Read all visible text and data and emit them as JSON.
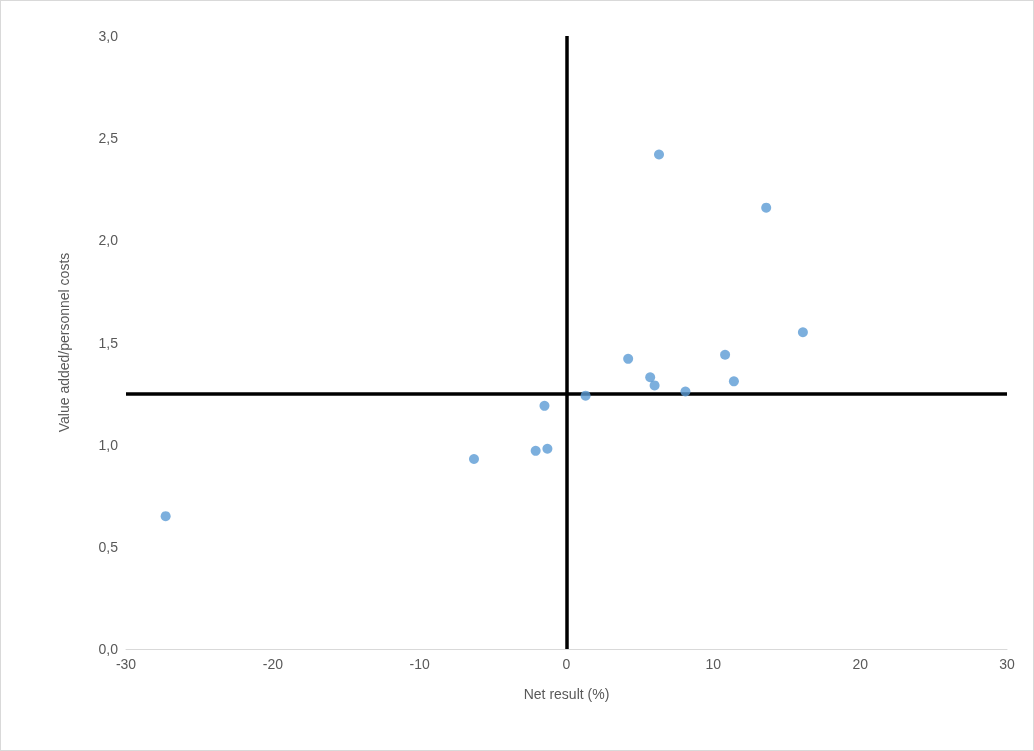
{
  "chart_data": {
    "type": "scatter",
    "xlabel": "Net result (%)",
    "ylabel": "Value added/personnel costs",
    "x": [
      -27.3,
      -6.3,
      -2.1,
      -1.3,
      -1.5,
      1.3,
      4.2,
      5.7,
      6.0,
      6.3,
      8.1,
      10.8,
      11.4,
      13.6,
      16.1
    ],
    "series": [
      {
        "color": "#5b9bd5",
        "values": [
          0.65,
          0.93,
          0.97,
          0.98,
          1.19,
          1.24,
          1.42,
          1.33,
          1.29,
          2.42,
          1.26,
          1.44,
          1.31,
          2.16,
          1.55
        ]
      }
    ],
    "xlim": [
      -30,
      30
    ],
    "xticks": [
      -30,
      -20,
      -10,
      0,
      10,
      20,
      30
    ],
    "ylim": [
      0,
      3
    ],
    "yticks": [
      {
        "value": 0,
        "label": "0,0"
      },
      {
        "value": 0.5,
        "label": "0,5"
      },
      {
        "value": 1,
        "label": "1,0"
      },
      {
        "value": 1.5,
        "label": "1,5"
      },
      {
        "value": 2,
        "label": "2,0"
      },
      {
        "value": 2.5,
        "label": "2,5"
      },
      {
        "value": 3,
        "label": "3,0"
      }
    ],
    "ref_lines": [
      {
        "axis": "x",
        "value": 0,
        "color": "#000000",
        "line_style": "solid"
      },
      {
        "axis": "y",
        "value": 1.25,
        "color": "#000000",
        "line_style": "solid"
      }
    ],
    "marker": "circle"
  }
}
